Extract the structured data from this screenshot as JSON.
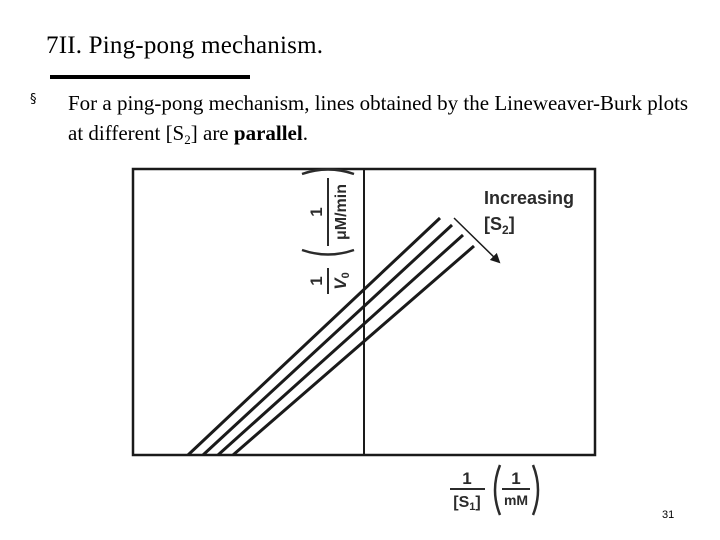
{
  "slide": {
    "title": "7II. Ping-pong mechanism.",
    "bullet_marker": "§",
    "body_part1": "For a ping-pong mechanism, lines obtained by the Lineweaver-Burk plots at different [S",
    "body_sub": "2",
    "body_part2": "] are ",
    "body_bold": "parallel",
    "body_end": ".",
    "page_number": "31"
  },
  "figure": {
    "annotation_line1": "Increasing",
    "annotation_line2_open": "[S",
    "annotation_line2_sub": "2",
    "annotation_line2_close": "]",
    "y_axis": {
      "frac_num": "1",
      "frac_den_main": "V",
      "frac_den_sub": "0",
      "unit_num": "1",
      "unit_den": "μM/min"
    },
    "x_axis": {
      "frac_num": "1",
      "frac_den_open": "[S",
      "frac_den_sub": "1",
      "frac_den_close": "]",
      "unit_num": "1",
      "unit_den": "mM"
    }
  }
}
